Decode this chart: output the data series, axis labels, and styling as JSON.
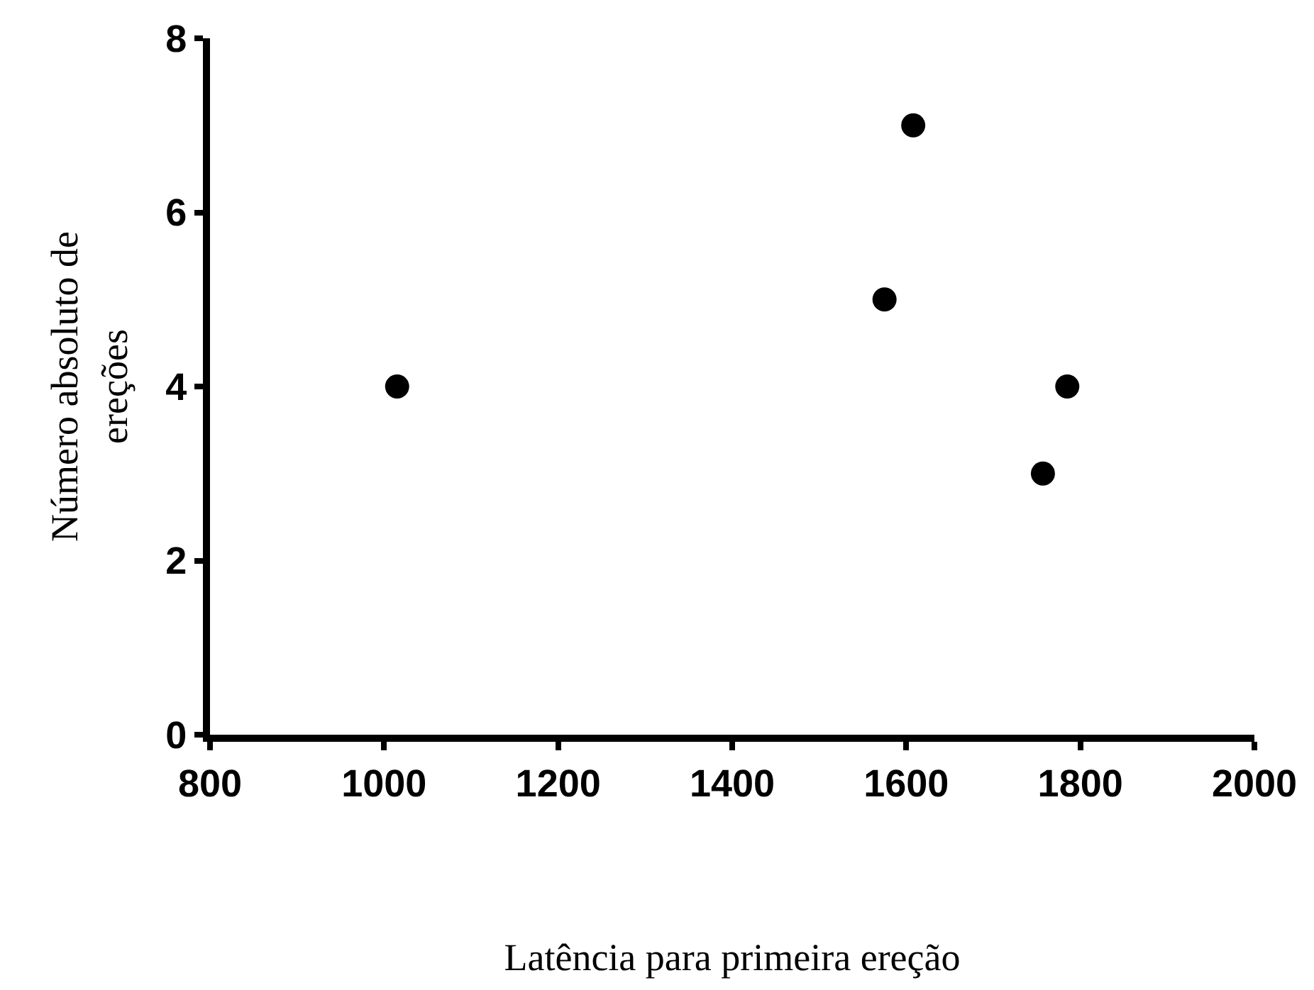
{
  "chart_data": {
    "type": "scatter",
    "xlabel": "Latência para primeira ereção",
    "ylabel": "Número absoluto de\nereções",
    "x": [
      1015,
      1575,
      1608,
      1757,
      1785
    ],
    "series": [
      {
        "color": "#000000",
        "values": [
          4,
          5,
          7,
          3,
          4
        ]
      }
    ],
    "xlim": [
      800,
      2000
    ],
    "xticks": [
      800,
      1000,
      1200,
      1400,
      1600,
      1800,
      2000
    ],
    "ylim": [
      0,
      8
    ],
    "yticks": [
      0,
      2,
      4,
      6,
      8
    ],
    "marker": "circle"
  }
}
